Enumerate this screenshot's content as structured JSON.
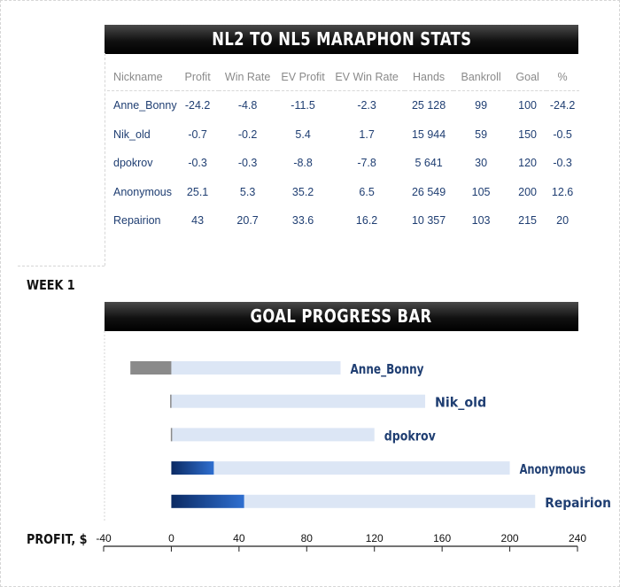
{
  "stats": {
    "title": "NL2 TO NL5 MARAPHON STATS",
    "columns": [
      "Nickname",
      "Profit",
      "Win Rate",
      "EV Profit",
      "EV Win Rate",
      "Hands",
      "Bankroll",
      "Goal",
      "%"
    ],
    "rows": [
      [
        "Anne_Bonny",
        "-24.2",
        "-4.8",
        "-11.5",
        "-2.3",
        "25 128",
        "99",
        "100",
        "-24.2"
      ],
      [
        "Nik_old",
        "-0.7",
        "-0.2",
        "5.4",
        "1.7",
        "15 944",
        "59",
        "150",
        "-0.5"
      ],
      [
        "dpokrov",
        "-0.3",
        "-0.3",
        "-8.8",
        "-7.8",
        "5 641",
        "30",
        "120",
        "-0.3"
      ],
      [
        "Anonymous",
        "25.1",
        "5.3",
        "35.2",
        "6.5",
        "26 549",
        "105",
        "200",
        "12.6"
      ],
      [
        "Repairion",
        "43",
        "20.7",
        "33.6",
        "16.2",
        "10 357",
        "103",
        "215",
        "20"
      ]
    ]
  },
  "week_label": "WEEK 1",
  "chart_data": {
    "type": "bar",
    "title": "GOAL PROGRESS BAR",
    "xlabel": "PROFIT, $",
    "xlim": [
      -40,
      240
    ],
    "ticks": [
      -40,
      0,
      40,
      80,
      120,
      160,
      200,
      240
    ],
    "tick_labels": [
      "-40",
      "0",
      "40",
      "80",
      "120",
      "160",
      "200",
      "240"
    ],
    "categories": [
      "Anne_Bonny",
      "Nik_old",
      "dpokrov",
      "Anonymous",
      "Repairion"
    ],
    "series": [
      {
        "values": [
          -24.2,
          -0.7,
          -0.3,
          25.1,
          43
        ]
      },
      {
        "values": [
          100,
          150,
          120,
          200,
          215
        ]
      }
    ],
    "colors": {
      "goal": "#dce6f5",
      "profit_positive_start": "#0b2a63",
      "profit_positive_end": "#2f6fd0",
      "profit_negative": "#8a8a8a",
      "label": "#1f3e72"
    }
  }
}
